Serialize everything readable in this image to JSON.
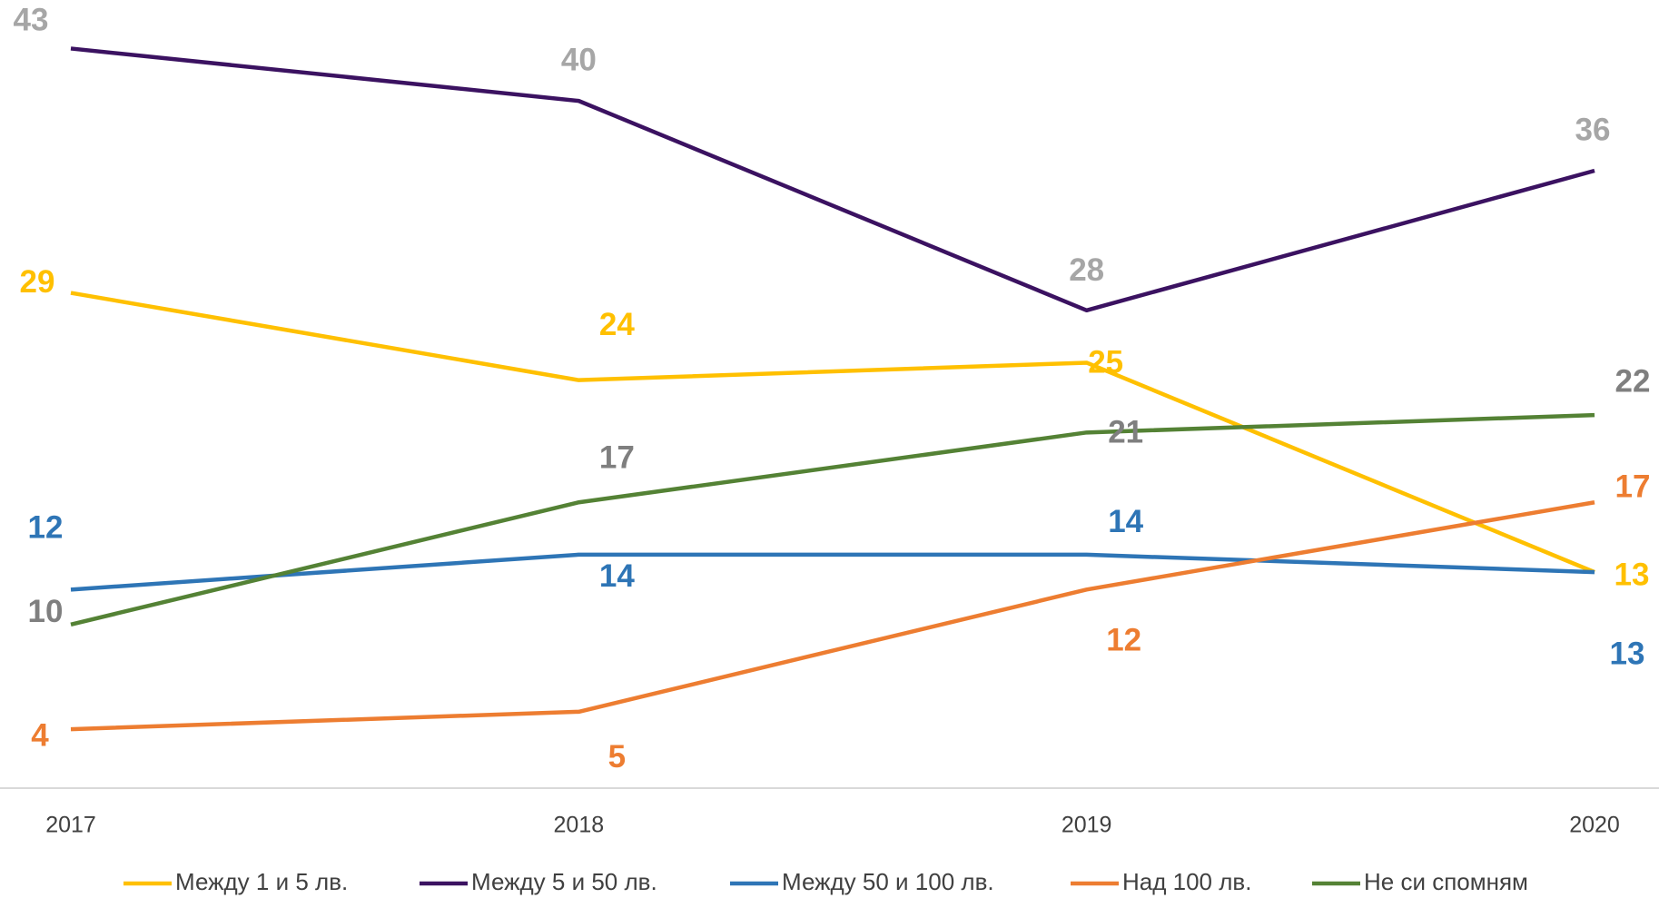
{
  "chart_data": {
    "type": "line",
    "categories": [
      "2017",
      "2018",
      "2019",
      "2020"
    ],
    "series": [
      {
        "name": "Между 1 и 5 лв.",
        "color": "#FFC000",
        "label_color": "#FFC000",
        "values": [
          29,
          24,
          25,
          13
        ]
      },
      {
        "name": "Между 5 и 50 лв.",
        "color": "#3B1261",
        "label_color": "#A6A6A6",
        "values": [
          43,
          40,
          28,
          36
        ]
      },
      {
        "name": "Между 50 и 100 лв.",
        "color": "#2E75B6",
        "label_color": "#2E75B6",
        "values": [
          12,
          14,
          14,
          13
        ]
      },
      {
        "name": "Над 100 лв.",
        "color": "#ED7D31",
        "label_color": "#ED7D31",
        "values": [
          4,
          5,
          12,
          17
        ]
      },
      {
        "name": "Не си спомням",
        "color": "#548235",
        "label_color": "#7F7F7F",
        "values": [
          10,
          17,
          21,
          22
        ]
      }
    ],
    "ylim": [
      0,
      45
    ],
    "legend": "bottom"
  }
}
